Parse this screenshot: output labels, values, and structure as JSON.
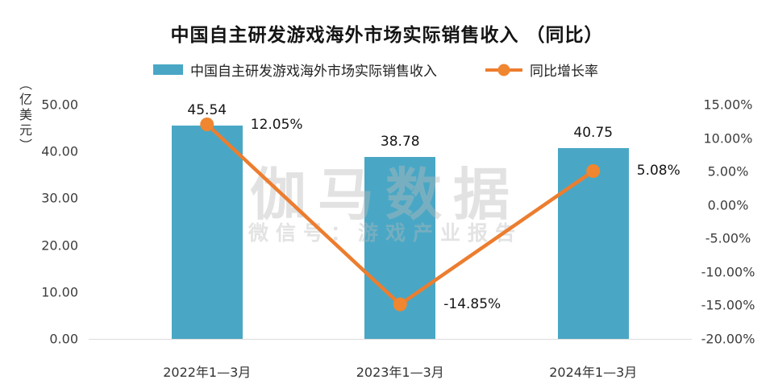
{
  "title": "中国自主研发游戏海外市场实际销售收入 （同比）",
  "legend": [
    {
      "label": "中国自主研发游戏海外市场实际销售收入",
      "type": "bar",
      "color": "#49A7C5"
    },
    {
      "label": "同比增长率",
      "type": "line",
      "color": "#EC7D2F",
      "dot_color": "#F0862F"
    }
  ],
  "watermark": {
    "main": "伽马数据",
    "sub": "微信号：游戏产业报告"
  },
  "chart_data": {
    "type": "bar+line",
    "title": "中国自主研发游戏海外市场实际销售收入 （同比）",
    "categories": [
      "2022年1—3月",
      "2023年1—3月",
      "2024年1—3月"
    ],
    "series": [
      {
        "name": "中国自主研发游戏海外市场实际销售收入",
        "type": "bar",
        "axis": "left",
        "values": [
          45.54,
          38.78,
          40.75
        ],
        "labels": [
          "45.54",
          "38.78",
          "40.75"
        ],
        "color": "#49A7C5"
      },
      {
        "name": "同比增长率",
        "type": "line",
        "axis": "right",
        "values": [
          12.05,
          -14.85,
          5.08
        ],
        "labels": [
          "12.05%",
          "-14.85%",
          "5.08%"
        ],
        "color": "#EC7D2F"
      }
    ],
    "left_axis": {
      "unit": "（亿美元）",
      "min": 0,
      "max": 50,
      "step": 10,
      "tick_labels": [
        "50.00",
        "40.00",
        "30.00",
        "20.00",
        "10.00",
        "0.00"
      ]
    },
    "right_axis": {
      "min": -20,
      "max": 15,
      "step": 5,
      "tick_labels": [
        "15.00%",
        "10.00%",
        "5.00%",
        "0.00%",
        "-5.00%",
        "-10.00%",
        "-15.00%",
        "-20.00%"
      ]
    },
    "grid": false,
    "legend_position": "top"
  }
}
